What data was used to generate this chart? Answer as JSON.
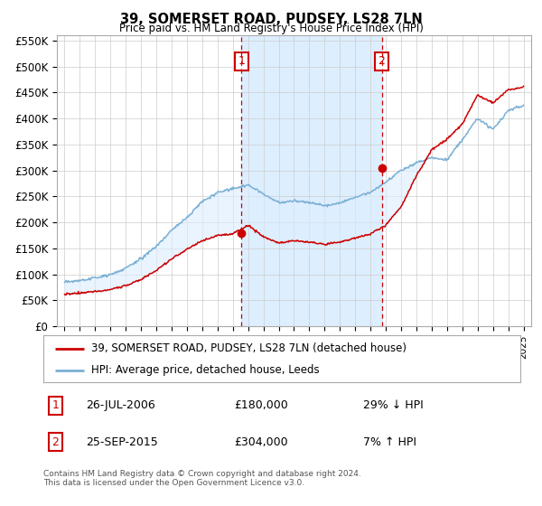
{
  "title": "39, SOMERSET ROAD, PUDSEY, LS28 7LN",
  "subtitle": "Price paid vs. HM Land Registry's House Price Index (HPI)",
  "legend_line1": "39, SOMERSET ROAD, PUDSEY, LS28 7LN (detached house)",
  "legend_line2": "HPI: Average price, detached house, Leeds",
  "annotation1_date": "26-JUL-2006",
  "annotation1_price": "£180,000",
  "annotation1_hpi": "29% ↓ HPI",
  "annotation2_date": "25-SEP-2015",
  "annotation2_price": "£304,000",
  "annotation2_hpi": "7% ↑ HPI",
  "footer": "Contains HM Land Registry data © Crown copyright and database right 2024.\nThis data is licensed under the Open Government Licence v3.0.",
  "line_red_color": "#cc0000",
  "line_blue_color": "#7ab0d4",
  "fill_color": "#ddeeff",
  "vline_color": "#cc0000",
  "annotation_box_color": "#cc0000",
  "background_color": "#ffffff",
  "grid_color": "#cccccc",
  "ylim": [
    0,
    560000
  ],
  "yticks": [
    0,
    50000,
    100000,
    150000,
    200000,
    250000,
    300000,
    350000,
    400000,
    450000,
    500000,
    550000
  ],
  "ytick_labels": [
    "£0",
    "£50K",
    "£100K",
    "£150K",
    "£200K",
    "£250K",
    "£300K",
    "£350K",
    "£400K",
    "£450K",
    "£500K",
    "£550K"
  ],
  "vline1_x": 2006.56,
  "vline2_x": 2015.73,
  "marker1_x": 2006.56,
  "marker1_y": 180000,
  "marker2_x": 2015.73,
  "marker2_y": 304000,
  "xlim": [
    1994.5,
    2025.5
  ],
  "xticks": [
    1995,
    1996,
    1997,
    1998,
    1999,
    2000,
    2001,
    2002,
    2003,
    2004,
    2005,
    2006,
    2007,
    2008,
    2009,
    2010,
    2011,
    2012,
    2013,
    2014,
    2015,
    2016,
    2017,
    2018,
    2019,
    2020,
    2021,
    2022,
    2023,
    2024,
    2025
  ]
}
